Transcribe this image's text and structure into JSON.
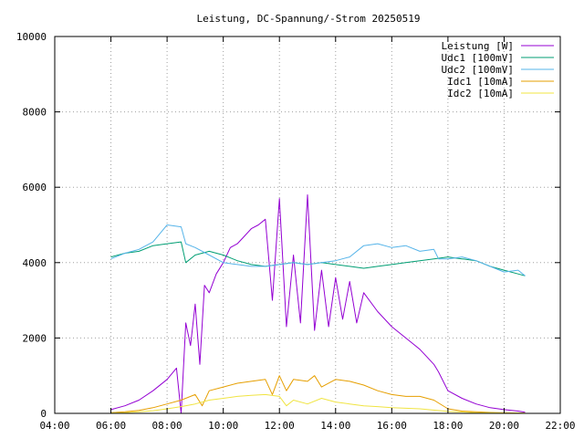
{
  "chart_data": {
    "type": "line",
    "title": "Leistung, DC-Spannung/-Strom 20250519",
    "xlabel": "",
    "ylabel": "",
    "xlim": [
      "04:00",
      "22:00"
    ],
    "ylim": [
      0,
      10000
    ],
    "x_ticks": [
      "04:00",
      "06:00",
      "08:00",
      "10:00",
      "12:00",
      "14:00",
      "16:00",
      "18:00",
      "20:00",
      "22:00"
    ],
    "y_ticks": [
      0,
      2000,
      4000,
      6000,
      8000,
      10000
    ],
    "grid": true,
    "legend_position": "top-right",
    "series": [
      {
        "name": "Leistung [W]",
        "color": "#9400d3",
        "x": [
          "06:00",
          "06:30",
          "07:00",
          "07:30",
          "08:00",
          "08:20",
          "08:30",
          "08:40",
          "08:50",
          "09:00",
          "09:10",
          "09:20",
          "09:30",
          "09:45",
          "10:00",
          "10:15",
          "10:30",
          "10:45",
          "11:00",
          "11:15",
          "11:30",
          "11:45",
          "12:00",
          "12:15",
          "12:30",
          "12:45",
          "13:00",
          "13:15",
          "13:30",
          "13:45",
          "14:00",
          "14:15",
          "14:30",
          "14:45",
          "15:00",
          "15:30",
          "16:00",
          "16:30",
          "17:00",
          "17:30",
          "17:40",
          "18:00",
          "18:30",
          "19:00",
          "19:30",
          "20:00",
          "20:30",
          "20:45"
        ],
        "values": [
          100,
          200,
          350,
          600,
          900,
          1200,
          0,
          2400,
          1800,
          2900,
          1300,
          3400,
          3200,
          3700,
          4000,
          4400,
          4500,
          4700,
          4900,
          5000,
          5150,
          3000,
          5700,
          2300,
          4200,
          2400,
          5800,
          2200,
          3800,
          2300,
          3600,
          2500,
          3500,
          2400,
          3200,
          2700,
          2300,
          2000,
          1700,
          1300,
          1100,
          600,
          400,
          250,
          150,
          100,
          60,
          30
        ]
      },
      {
        "name": "Udc1 [100mV]",
        "color": "#009e73",
        "x": [
          "06:00",
          "06:30",
          "07:00",
          "07:30",
          "08:00",
          "08:30",
          "08:40",
          "09:00",
          "09:30",
          "10:00",
          "10:30",
          "11:00",
          "11:30",
          "12:00",
          "12:30",
          "13:00",
          "13:30",
          "14:00",
          "14:30",
          "15:00",
          "15:30",
          "16:00",
          "16:30",
          "17:00",
          "17:30",
          "18:00",
          "18:30",
          "19:00",
          "19:30",
          "20:00",
          "20:30",
          "20:45"
        ],
        "values": [
          4150,
          4250,
          4300,
          4450,
          4500,
          4550,
          4000,
          4200,
          4300,
          4200,
          4050,
          3950,
          3900,
          3950,
          4000,
          3950,
          4000,
          3950,
          3900,
          3850,
          3900,
          3950,
          4000,
          4050,
          4100,
          4150,
          4100,
          4050,
          3900,
          3800,
          3700,
          3650
        ]
      },
      {
        "name": "Udc2 [100mV]",
        "color": "#56b4e9",
        "x": [
          "06:00",
          "06:30",
          "07:00",
          "07:30",
          "08:00",
          "08:30",
          "08:40",
          "09:00",
          "09:30",
          "10:00",
          "10:30",
          "11:00",
          "11:30",
          "12:00",
          "12:30",
          "13:00",
          "13:30",
          "14:00",
          "14:30",
          "15:00",
          "15:30",
          "16:00",
          "16:30",
          "17:00",
          "17:30",
          "17:40",
          "18:00",
          "18:30",
          "19:00",
          "19:30",
          "20:00",
          "20:30",
          "20:45"
        ],
        "values": [
          4100,
          4250,
          4350,
          4550,
          5000,
          4950,
          4500,
          4400,
          4200,
          4000,
          3950,
          3900,
          3900,
          3950,
          4000,
          3950,
          4000,
          4050,
          4150,
          4450,
          4500,
          4400,
          4450,
          4300,
          4350,
          4100,
          4100,
          4150,
          4050,
          3900,
          3750,
          3800,
          3650
        ]
      },
      {
        "name": "Idc1 [10mA]",
        "color": "#e69f00",
        "x": [
          "06:00",
          "06:30",
          "07:00",
          "07:30",
          "08:00",
          "08:30",
          "09:00",
          "09:15",
          "09:30",
          "10:00",
          "10:30",
          "11:00",
          "11:30",
          "11:45",
          "12:00",
          "12:15",
          "12:30",
          "13:00",
          "13:15",
          "13:30",
          "14:00",
          "14:30",
          "15:00",
          "15:30",
          "16:00",
          "16:30",
          "17:00",
          "17:30",
          "18:00",
          "18:30",
          "19:00",
          "19:30",
          "20:00",
          "20:30",
          "20:45"
        ],
        "values": [
          20,
          40,
          80,
          150,
          250,
          350,
          500,
          200,
          600,
          700,
          800,
          850,
          900,
          500,
          1000,
          600,
          900,
          850,
          1000,
          700,
          900,
          850,
          750,
          600,
          500,
          450,
          450,
          350,
          120,
          60,
          40,
          25,
          15,
          10,
          5
        ]
      },
      {
        "name": "Idc2 [10mA]",
        "color": "#f0e442",
        "x": [
          "06:00",
          "06:30",
          "07:00",
          "07:30",
          "08:00",
          "08:30",
          "09:00",
          "09:30",
          "10:00",
          "10:30",
          "11:00",
          "11:30",
          "12:00",
          "12:15",
          "12:30",
          "13:00",
          "13:30",
          "14:00",
          "14:30",
          "15:00",
          "15:30",
          "16:00",
          "17:00",
          "18:00",
          "19:00",
          "20:00",
          "20:45"
        ],
        "values": [
          10,
          20,
          40,
          70,
          120,
          180,
          250,
          350,
          400,
          450,
          480,
          500,
          450,
          200,
          350,
          250,
          400,
          300,
          250,
          200,
          180,
          150,
          120,
          50,
          20,
          10,
          5
        ]
      }
    ]
  }
}
